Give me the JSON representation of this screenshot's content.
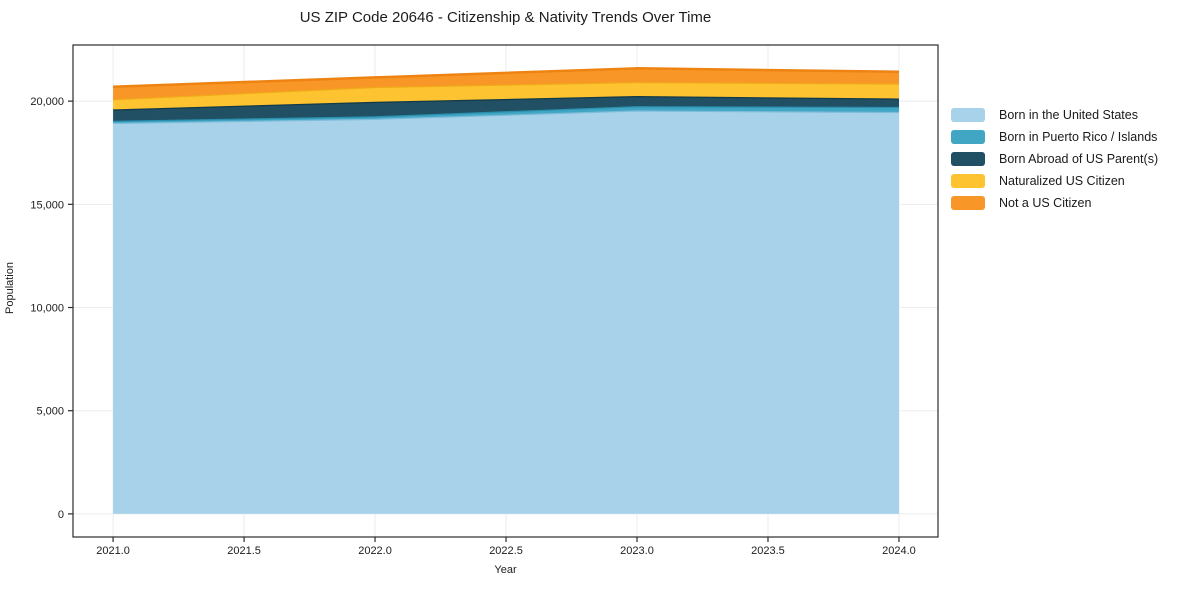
{
  "title": "US ZIP Code 20646 - Citizenship & Nativity Trends Over Time",
  "chart_data": {
    "type": "area",
    "stacked": true,
    "title": "US ZIP Code 20646 - Citizenship & Nativity Trends Over Time",
    "xlabel": "Year",
    "ylabel": "Population",
    "x": [
      2021,
      2022,
      2023,
      2024
    ],
    "series": [
      {
        "name": "Born in the United States",
        "values": [
          18950,
          19150,
          19550,
          19480
        ],
        "fill": "#a8d2ea",
        "line": "#7cbcd9"
      },
      {
        "name": "Born in Puerto Rico / Islands",
        "values": [
          100,
          120,
          210,
          240
        ],
        "fill": "#41a6c4",
        "line": "#2b8fae"
      },
      {
        "name": "Born Abroad of US Parent(s)",
        "values": [
          550,
          700,
          490,
          410
        ],
        "fill": "#214f63",
        "line": "#123a4a"
      },
      {
        "name": "Naturalized US Citizen",
        "values": [
          500,
          720,
          680,
          730
        ],
        "fill": "#fdc330",
        "line": "#f0a91a"
      },
      {
        "name": "Not a US Citizen",
        "values": [
          600,
          460,
          660,
          560
        ],
        "fill": "#f89627",
        "line": "#ee8312"
      }
    ],
    "xlim": [
      2020.847,
      2024.149
    ],
    "ylim": [
      -1120,
      22720
    ],
    "xticks": {
      "values": [
        2021.0,
        2021.5,
        2022.0,
        2022.5,
        2023.0,
        2023.5,
        2024.0
      ],
      "labels": [
        "2021.0",
        "2021.5",
        "2022.0",
        "2022.5",
        "2023.0",
        "2023.5",
        "2024.0"
      ]
    },
    "yticks": {
      "values": [
        0,
        5000,
        10000,
        15000,
        20000
      ],
      "labels": [
        "0",
        "5,000",
        "10,000",
        "15,000",
        "20,000"
      ]
    },
    "grid": true,
    "grid_color": "#eaecf0",
    "spine_color": "#2b2b2b",
    "tick_label_color": "#1c1c1c",
    "legend_position": "right"
  }
}
